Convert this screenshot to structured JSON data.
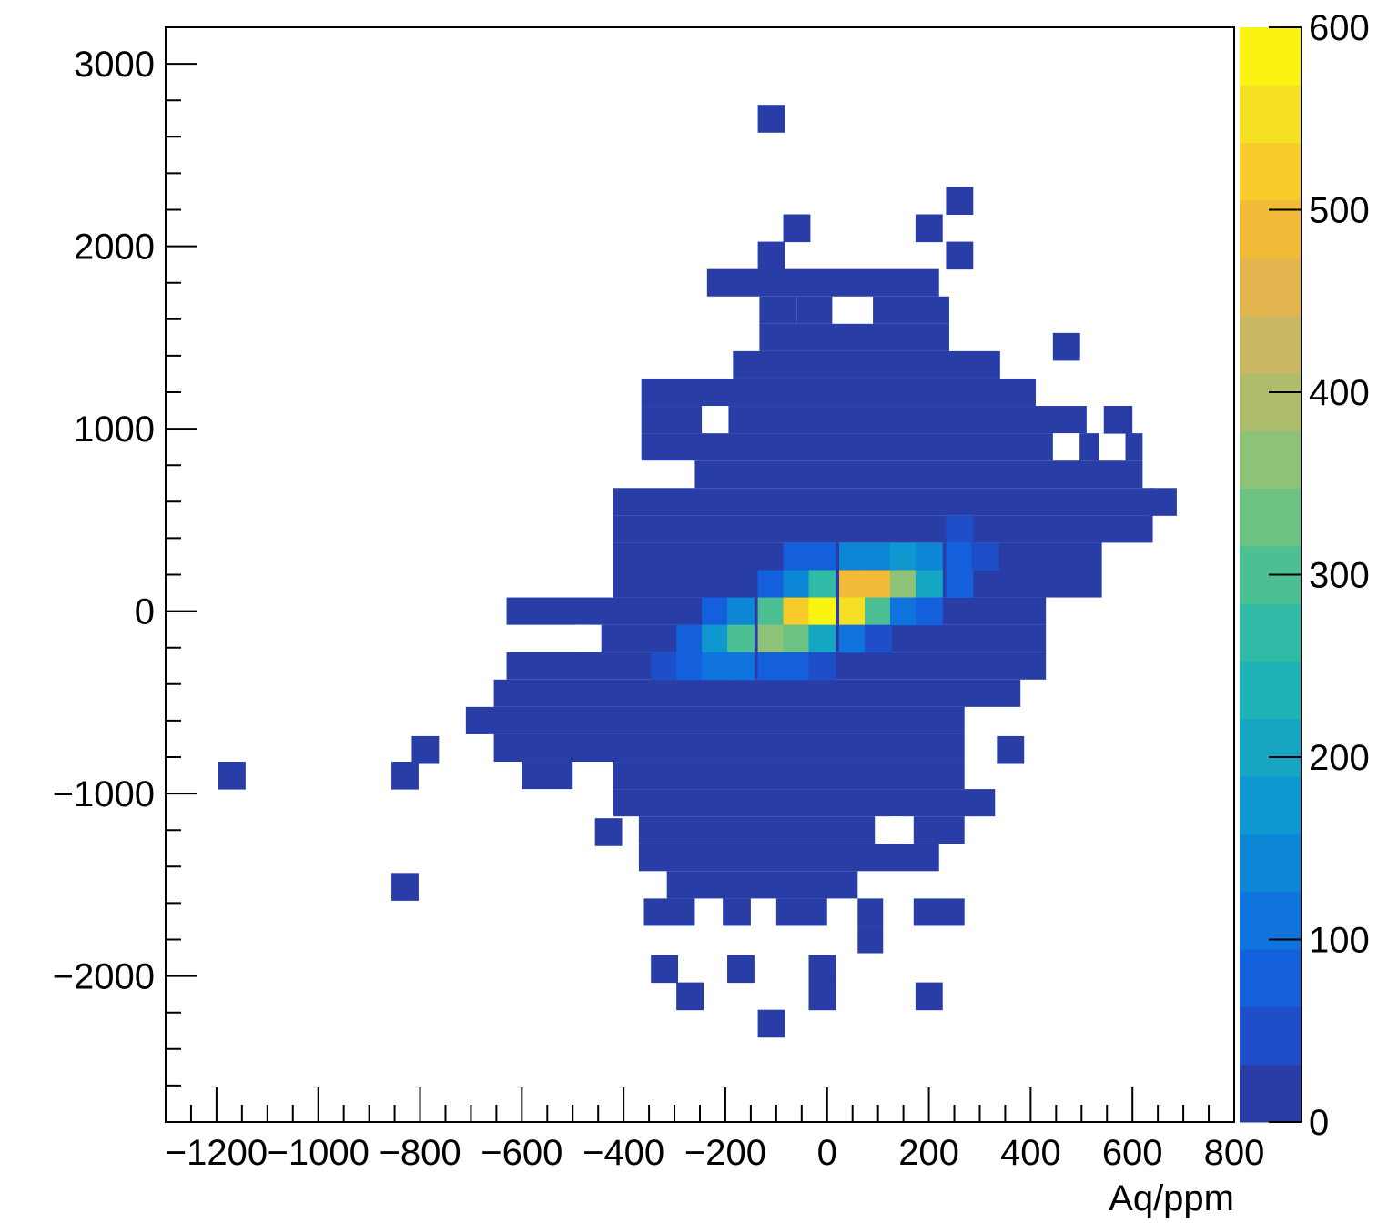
{
  "chart_data": {
    "type": "heatmap",
    "title": "",
    "xlabel": "Aq/ppm",
    "ylabel": "",
    "xlim": [
      -1300,
      800
    ],
    "ylim": [
      -2800,
      3200
    ],
    "bin_size": {
      "x": 52.5,
      "y": 150
    },
    "x_ticks": [
      -1200,
      -1000,
      -800,
      -600,
      -400,
      -200,
      0,
      200,
      400,
      600,
      800
    ],
    "x_tick_labels": [
      "-1200",
      "-1000",
      "-800",
      "-600",
      "-400",
      "-200",
      "0",
      "200",
      "400",
      "600",
      "800"
    ],
    "y_ticks": [
      -2000,
      -1000,
      0,
      1000,
      2000,
      3000
    ],
    "y_tick_labels": [
      "-2000",
      "-1000",
      "0",
      "1000",
      "2000",
      "3000"
    ],
    "colorbar": {
      "min": 0,
      "max": 600,
      "ticks": [
        0,
        100,
        200,
        300,
        400,
        500,
        600
      ],
      "tick_labels": [
        "0",
        "100",
        "200",
        "300",
        "400",
        "500",
        "600"
      ],
      "colors": [
        "#283ea6",
        "#1e4fc8",
        "#1460dc",
        "#0f74dd",
        "#0d86d6",
        "#0f97cf",
        "#15a6c4",
        "#1fb2b6",
        "#31baa5",
        "#4cbf93",
        "#6bc283",
        "#8ec277",
        "#adbd6c",
        "#cbb862",
        "#e2b54f",
        "#f1bb37",
        "#f8cc2a",
        "#f6e024",
        "#fbf413"
      ]
    },
    "cells": [
      {
        "x": -110,
        "y": 2700,
        "value": 5
      },
      {
        "x": 260,
        "y": 2250,
        "value": 5
      },
      {
        "x": -60,
        "y": 2100,
        "value": 5
      },
      {
        "x": 200,
        "y": 2100,
        "value": 5
      },
      {
        "x": -110,
        "y": 1950,
        "value": 5
      },
      {
        "x": 260,
        "y": 1950,
        "value": 5
      },
      {
        "x": 570,
        "y": 1050,
        "value": 5
      },
      {
        "x": 470,
        "y": 1450,
        "value": 5
      },
      {
        "x": 660,
        "y": 600,
        "value": 5
      },
      {
        "x": -1170,
        "y": -900,
        "value": 5
      },
      {
        "x": -830,
        "y": -900,
        "value": 5
      },
      {
        "x": -790,
        "y": -760,
        "value": 5
      },
      {
        "x": 360,
        "y": -760,
        "value": 5
      },
      {
        "x": -430,
        "y": -1210,
        "value": 5
      },
      {
        "x": -830,
        "y": -1510,
        "value": 5
      },
      {
        "x": -320,
        "y": -1960,
        "value": 5
      },
      {
        "x": -170,
        "y": -1960,
        "value": 5
      },
      {
        "x": -10,
        "y": -1960,
        "value": 5
      },
      {
        "x": -270,
        "y": -2110,
        "value": 5
      },
      {
        "x": -10,
        "y": -2110,
        "value": 5
      },
      {
        "x": 200,
        "y": -2110,
        "value": 5
      },
      {
        "x": -110,
        "y": -2260,
        "value": 5
      },
      {
        "x": 260,
        "y": 450,
        "value": 60
      },
      {
        "x": -60,
        "y": 300,
        "value": 70
      },
      {
        "x": -10,
        "y": 300,
        "value": 90
      },
      {
        "x": 50,
        "y": 300,
        "value": 130
      },
      {
        "x": 100,
        "y": 300,
        "value": 150
      },
      {
        "x": 150,
        "y": 300,
        "value": 160
      },
      {
        "x": 200,
        "y": 300,
        "value": 130
      },
      {
        "x": 260,
        "y": 300,
        "value": 80
      },
      {
        "x": 310,
        "y": 300,
        "value": 60
      },
      {
        "x": -110,
        "y": 150,
        "value": 80
      },
      {
        "x": -60,
        "y": 150,
        "value": 150
      },
      {
        "x": -10,
        "y": 150,
        "value": 270
      },
      {
        "x": 50,
        "y": 150,
        "value": 480
      },
      {
        "x": 100,
        "y": 150,
        "value": 500
      },
      {
        "x": 150,
        "y": 150,
        "value": 370
      },
      {
        "x": 200,
        "y": 150,
        "value": 200
      },
      {
        "x": 260,
        "y": 150,
        "value": 90
      },
      {
        "x": -220,
        "y": 0,
        "value": 80
      },
      {
        "x": -170,
        "y": 0,
        "value": 150
      },
      {
        "x": -110,
        "y": 0,
        "value": 300
      },
      {
        "x": -60,
        "y": 0,
        "value": 530
      },
      {
        "x": -10,
        "y": 0,
        "value": 600
      },
      {
        "x": 50,
        "y": 0,
        "value": 540
      },
      {
        "x": 100,
        "y": 0,
        "value": 300
      },
      {
        "x": 150,
        "y": 0,
        "value": 110
      },
      {
        "x": 200,
        "y": 0,
        "value": 70
      },
      {
        "x": -270,
        "y": -150,
        "value": 70
      },
      {
        "x": -220,
        "y": -150,
        "value": 170
      },
      {
        "x": -170,
        "y": -150,
        "value": 300
      },
      {
        "x": -110,
        "y": -150,
        "value": 370
      },
      {
        "x": -60,
        "y": -150,
        "value": 330
      },
      {
        "x": -10,
        "y": -150,
        "value": 200
      },
      {
        "x": 50,
        "y": -150,
        "value": 100
      },
      {
        "x": 100,
        "y": -150,
        "value": 60
      },
      {
        "x": -320,
        "y": -300,
        "value": 60
      },
      {
        "x": -270,
        "y": -300,
        "value": 80
      },
      {
        "x": -220,
        "y": -300,
        "value": 100
      },
      {
        "x": -170,
        "y": -300,
        "value": 100
      },
      {
        "x": -110,
        "y": -300,
        "value": 90
      },
      {
        "x": -60,
        "y": -300,
        "value": 70
      },
      {
        "x": -10,
        "y": -300,
        "value": 60
      }
    ]
  }
}
